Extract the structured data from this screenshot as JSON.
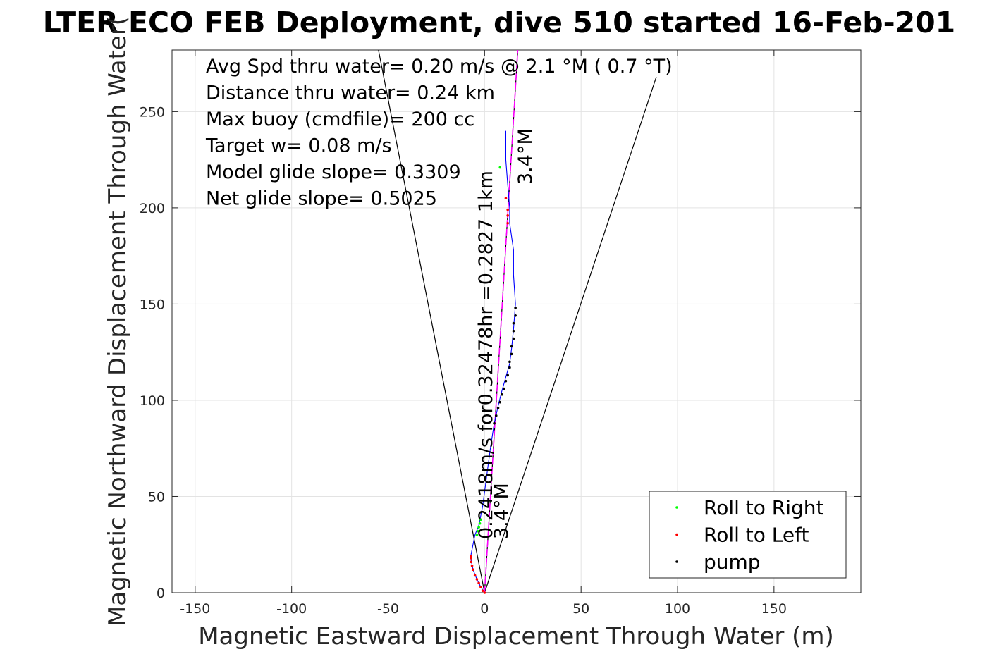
{
  "chart_data": {
    "type": "scatter",
    "title": "LTER ECO FEB Deployment, dive 510 started 16-Feb-201",
    "xlabel": "Magnetic Eastward Displacement Through Water (m)",
    "ylabel": "Magnetic Northward Displacement Through Water(",
    "xlim": [
      -162,
      195
    ],
    "ylim": [
      0,
      282
    ],
    "xticks": [
      -150,
      -100,
      -50,
      0,
      50,
      100,
      150
    ],
    "yticks": [
      0,
      50,
      100,
      150,
      200,
      250
    ],
    "grid": true,
    "info_lines": [
      "Avg Spd thru water=  0.20 m/s @   2.1 °M (  0.7 °T)",
      "Distance thru water=  0.24 km",
      "Max buoy (cmdfile)= 200 cc",
      "Target w= 0.08 m/s",
      "Model glide slope= 0.3309",
      "Net glide slope= 0.5025"
    ],
    "annotation_main": "0.2418m/s for0.32478hr =0.2827 1km",
    "annotation_heading": "3.4°M",
    "track": [
      [
        0,
        0
      ],
      [
        -2,
        3
      ],
      [
        -4,
        7
      ],
      [
        -6,
        12
      ],
      [
        -7,
        17
      ],
      [
        -7,
        20
      ],
      [
        -6,
        25
      ],
      [
        -5,
        30
      ],
      [
        -3,
        35
      ],
      [
        -1,
        45
      ],
      [
        1,
        60
      ],
      [
        3,
        75
      ],
      [
        5,
        88
      ],
      [
        7,
        97
      ],
      [
        9,
        105
      ],
      [
        11,
        112
      ],
      [
        13,
        119
      ],
      [
        14,
        127
      ],
      [
        15,
        137
      ],
      [
        16,
        150
      ],
      [
        15,
        165
      ],
      [
        15,
        178
      ],
      [
        13,
        192
      ],
      [
        13,
        200
      ],
      [
        12,
        212
      ],
      [
        11,
        225
      ],
      [
        11,
        240
      ]
    ],
    "roll_right": [
      [
        -4,
        30
      ],
      [
        -3.5,
        32
      ],
      [
        -3,
        34
      ],
      [
        -2.5,
        36
      ],
      [
        -2,
        38
      ],
      [
        8,
        221
      ]
    ],
    "roll_left": [
      [
        0,
        0
      ],
      [
        -1,
        1
      ],
      [
        -2,
        3
      ],
      [
        -3,
        5
      ],
      [
        -4,
        7
      ],
      [
        -5,
        9
      ],
      [
        -6,
        12
      ],
      [
        -6.5,
        14
      ],
      [
        -7,
        16
      ],
      [
        -7,
        18
      ],
      [
        -7,
        19
      ],
      [
        12,
        192
      ],
      [
        12,
        196
      ],
      [
        12,
        199
      ],
      [
        11,
        205
      ]
    ],
    "pump": [
      [
        5,
        88
      ],
      [
        6,
        92
      ],
      [
        7,
        96
      ],
      [
        8,
        99
      ],
      [
        9,
        103
      ],
      [
        10,
        106
      ],
      [
        11,
        110
      ],
      [
        12,
        113
      ],
      [
        13,
        117
      ],
      [
        13,
        120
      ],
      [
        14,
        124
      ],
      [
        14,
        128
      ],
      [
        15,
        132
      ],
      [
        15,
        136
      ],
      [
        15,
        140
      ],
      [
        16,
        144
      ],
      [
        16,
        148
      ]
    ],
    "heading_lines": [
      [
        -55,
        282
      ],
      [
        89,
        268
      ]
    ],
    "course_line": [
      17.2,
      282
    ],
    "legend": {
      "position": "bottom-right",
      "entries": [
        {
          "label": "Roll to Right",
          "color": "#00ff00"
        },
        {
          "label": "Roll to Left",
          "color": "#ff0000"
        },
        {
          "label": "pump",
          "color": "#000000"
        }
      ]
    }
  }
}
